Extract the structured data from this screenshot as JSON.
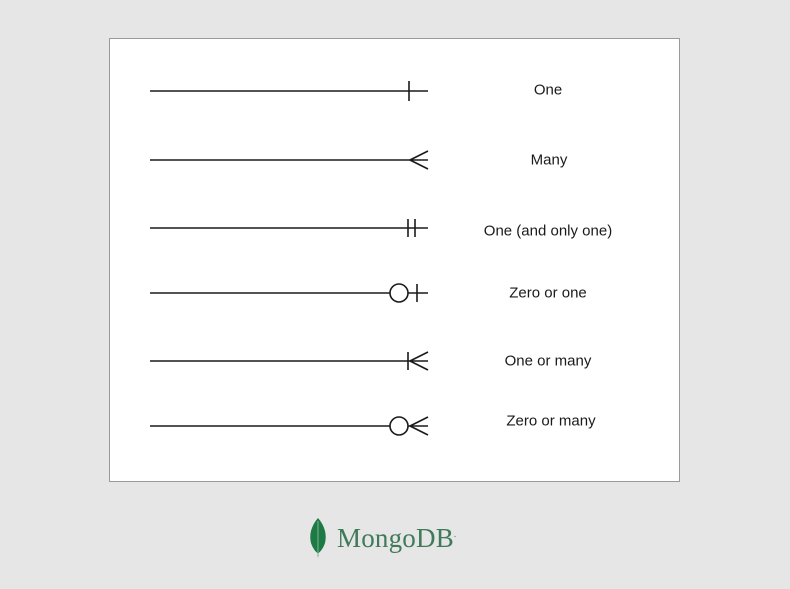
{
  "notations": [
    {
      "label": "One",
      "symbol": "one"
    },
    {
      "label": "Many",
      "symbol": "many"
    },
    {
      "label": "One (and only one)",
      "symbol": "one-and-only-one"
    },
    {
      "label": "Zero or one",
      "symbol": "zero-or-one"
    },
    {
      "label": "One or many",
      "symbol": "one-or-many"
    },
    {
      "label": "Zero or many",
      "symbol": "zero-or-many"
    }
  ],
  "brand": {
    "name": "MongoDB",
    "registered": ".",
    "color": "#3f7a5a",
    "leaf_color": "#1e7a45"
  },
  "colors": {
    "line": "#1a1a1a",
    "card": "#ffffff",
    "background": "#e6e6e6"
  }
}
